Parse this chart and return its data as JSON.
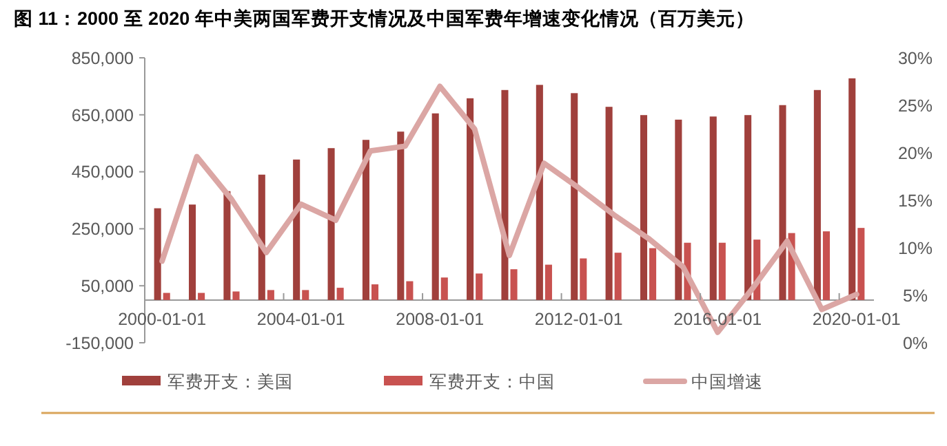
{
  "chart_data": {
    "type": "bar",
    "title": "图 11：2000 至 2020 年中美两国军费开支情况及中国军费年增速变化情况（百万美元）",
    "categories": [
      "2000-01-01",
      null,
      null,
      null,
      "2004-01-01",
      null,
      null,
      null,
      "2008-01-01",
      null,
      null,
      null,
      "2012-01-01",
      null,
      null,
      null,
      "2016-01-01",
      null,
      null,
      null,
      "2020-01-01"
    ],
    "series": [
      {
        "name": "军费开支：美国",
        "color": "#a0403c",
        "values": [
          322000,
          335000,
          382000,
          440000,
          493000,
          533000,
          562000,
          591000,
          655000,
          708000,
          737000,
          755000,
          726000,
          678000,
          649000,
          633000,
          644000,
          649000,
          684000,
          737000,
          778000
        ]
      },
      {
        "name": "军费开支：中国",
        "color": "#c85250",
        "values": [
          25000,
          25000,
          30000,
          35000,
          35000,
          43000,
          55000,
          66000,
          79000,
          93000,
          108000,
          124000,
          146000,
          166000,
          182000,
          201000,
          201000,
          212000,
          235000,
          241000,
          253000
        ]
      },
      {
        "name": "中国增速",
        "type": "line",
        "axis": "y2",
        "color": "#dba6a4",
        "values": [
          8.6,
          19.6,
          15.1,
          9.5,
          14.6,
          12.9,
          20.2,
          20.7,
          27.0,
          22.5,
          9.2,
          18.9,
          16.3,
          13.5,
          11.0,
          8.0,
          1.1,
          5.7,
          10.7,
          3.5,
          5.1
        ]
      }
    ],
    "ylim": [
      -150000,
      850000
    ],
    "yticks": [
      {
        "value": -150000,
        "label": "-150,000"
      },
      {
        "value": 50000,
        "label": "50,000"
      },
      {
        "value": 250000,
        "label": "250,000"
      },
      {
        "value": 450000,
        "label": "450,000"
      },
      {
        "value": 650000,
        "label": "650,000"
      },
      {
        "value": 850000,
        "label": "850,000"
      }
    ],
    "y2lim": [
      0,
      30
    ],
    "y2ticks": [
      {
        "value": 0,
        "label": "0%"
      },
      {
        "value": 5,
        "label": "5%"
      },
      {
        "value": 10,
        "label": "10%"
      },
      {
        "value": 15,
        "label": "15%"
      },
      {
        "value": 20,
        "label": "20%"
      },
      {
        "value": 25,
        "label": "25%"
      },
      {
        "value": 30,
        "label": "30%"
      }
    ],
    "grid": false,
    "legend": "bottom"
  }
}
